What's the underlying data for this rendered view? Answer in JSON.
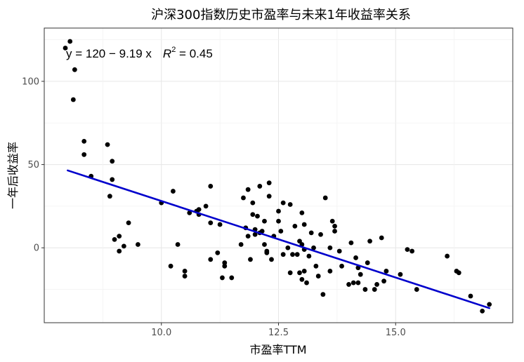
{
  "chart_data": {
    "type": "scatter",
    "title": "沪深300指数历史市盈率与未来1年收益率关系",
    "xlabel": "市盈率TTM",
    "ylabel": "一年后收益率",
    "xlim": [
      7.5,
      17.5
    ],
    "ylim": [
      -45,
      132
    ],
    "xticks": [
      10.0,
      12.5,
      15.0
    ],
    "xtick_labels": [
      "10.0",
      "12.5",
      "15.0"
    ],
    "yticks": [
      0,
      50,
      100
    ],
    "ytick_labels": [
      "0",
      "50",
      "100"
    ],
    "grid": true,
    "regression": {
      "intercept": 120,
      "slope": -9.19,
      "r2": 0.45,
      "x_start": 8.0,
      "x_end": 17.0,
      "color": "#0000CC",
      "equation_parts": {
        "lhs": "y = 120 − 9.19 x",
        "r": "R",
        "sup": "2",
        "rhs": " = 0.45"
      }
    },
    "point_color": "#000000",
    "points": [
      [
        7.95,
        120
      ],
      [
        8.05,
        124
      ],
      [
        8.15,
        107
      ],
      [
        8.12,
        89
      ],
      [
        8.35,
        64
      ],
      [
        8.35,
        56
      ],
      [
        8.5,
        43
      ],
      [
        8.85,
        62
      ],
      [
        8.95,
        52
      ],
      [
        8.95,
        41
      ],
      [
        8.9,
        31
      ],
      [
        9.0,
        5
      ],
      [
        9.1,
        7
      ],
      [
        9.1,
        -2
      ],
      [
        9.2,
        1
      ],
      [
        9.3,
        15
      ],
      [
        9.5,
        2
      ],
      [
        10.0,
        27
      ],
      [
        10.2,
        -11
      ],
      [
        10.25,
        34
      ],
      [
        10.35,
        2
      ],
      [
        10.5,
        -14
      ],
      [
        10.5,
        -17
      ],
      [
        10.6,
        21
      ],
      [
        10.75,
        22
      ],
      [
        10.8,
        23
      ],
      [
        10.8,
        20
      ],
      [
        10.95,
        25
      ],
      [
        11.05,
        37
      ],
      [
        11.05,
        15
      ],
      [
        11.05,
        -7
      ],
      [
        11.2,
        -3
      ],
      [
        11.25,
        14
      ],
      [
        11.3,
        -18
      ],
      [
        11.35,
        -9
      ],
      [
        11.35,
        -11
      ],
      [
        11.5,
        -18
      ],
      [
        11.7,
        2
      ],
      [
        11.75,
        30
      ],
      [
        11.8,
        12
      ],
      [
        11.85,
        35
      ],
      [
        11.85,
        7
      ],
      [
        11.9,
        -7
      ],
      [
        11.95,
        27
      ],
      [
        11.95,
        20
      ],
      [
        12.0,
        11
      ],
      [
        12.0,
        8
      ],
      [
        12.05,
        19
      ],
      [
        12.1,
        37
      ],
      [
        12.1,
        9
      ],
      [
        12.15,
        10
      ],
      [
        12.2,
        16
      ],
      [
        12.2,
        2
      ],
      [
        12.25,
        -3
      ],
      [
        12.25,
        -2
      ],
      [
        12.3,
        31
      ],
      [
        12.3,
        39
      ],
      [
        12.35,
        -7
      ],
      [
        12.4,
        7
      ],
      [
        12.5,
        22
      ],
      [
        12.5,
        16
      ],
      [
        12.55,
        10
      ],
      [
        12.6,
        -4
      ],
      [
        12.6,
        27
      ],
      [
        12.7,
        0
      ],
      [
        12.75,
        -15
      ],
      [
        12.75,
        26
      ],
      [
        12.8,
        -4
      ],
      [
        12.85,
        13
      ],
      [
        12.9,
        -4
      ],
      [
        12.95,
        4
      ],
      [
        12.95,
        -15
      ],
      [
        13.0,
        -19
      ],
      [
        13.0,
        21
      ],
      [
        13.0,
        2
      ],
      [
        13.05,
        -1
      ],
      [
        13.05,
        14
      ],
      [
        13.05,
        -14
      ],
      [
        13.1,
        -21
      ],
      [
        13.15,
        -5
      ],
      [
        13.2,
        9
      ],
      [
        13.25,
        0
      ],
      [
        13.3,
        -11
      ],
      [
        13.35,
        -17
      ],
      [
        13.4,
        8
      ],
      [
        13.45,
        -28
      ],
      [
        13.5,
        30
      ],
      [
        13.6,
        0
      ],
      [
        13.6,
        -14
      ],
      [
        13.65,
        16
      ],
      [
        13.7,
        13
      ],
      [
        13.7,
        10
      ],
      [
        13.8,
        -2
      ],
      [
        13.85,
        -11
      ],
      [
        14.0,
        -22
      ],
      [
        14.1,
        -21
      ],
      [
        14.05,
        3
      ],
      [
        14.15,
        -6
      ],
      [
        14.2,
        -12
      ],
      [
        14.2,
        -21
      ],
      [
        14.25,
        -16
      ],
      [
        14.35,
        -25
      ],
      [
        14.4,
        -9
      ],
      [
        14.45,
        4
      ],
      [
        14.55,
        -25
      ],
      [
        14.6,
        -22
      ],
      [
        14.7,
        6
      ],
      [
        14.75,
        -20
      ],
      [
        14.8,
        -14
      ],
      [
        15.1,
        -16
      ],
      [
        15.25,
        -1
      ],
      [
        15.35,
        -2
      ],
      [
        15.45,
        -25
      ],
      [
        16.1,
        -5
      ],
      [
        16.3,
        -14
      ],
      [
        16.35,
        -15
      ],
      [
        16.6,
        -29
      ],
      [
        16.85,
        -38
      ],
      [
        17.0,
        -34
      ]
    ]
  }
}
